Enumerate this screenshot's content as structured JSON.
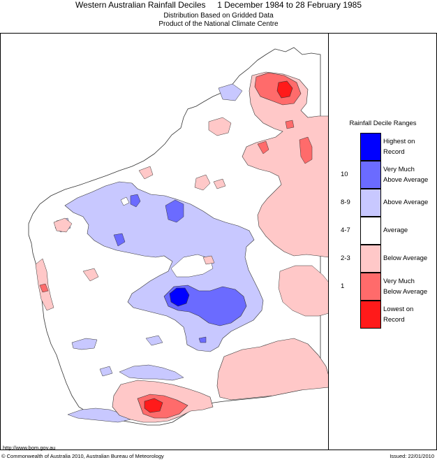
{
  "header": {
    "title": "Western Australian Rainfall Deciles     1 December 1984 to 28 February 1985",
    "subtitle1": "Distribution Based on Gridded Data",
    "subtitle2": "Product of the National Climate Centre"
  },
  "legend": {
    "title": "Rainfall Decile Ranges",
    "items": [
      {
        "label": "Highest on\nRecord",
        "decile": "",
        "color": "#0000ff"
      },
      {
        "label": "Very Much\nAbove Average",
        "decile": "10",
        "color": "#6b6bff"
      },
      {
        "label": "Above Average",
        "decile": "8-9",
        "color": "#c8c8ff"
      },
      {
        "label": "Average",
        "decile": "4-7",
        "color": "#ffffff"
      },
      {
        "label": "Below Average",
        "decile": "2-3",
        "color": "#ffc8c8"
      },
      {
        "label": "Very Much\nBelow Average",
        "decile": "1",
        "color": "#ff6b6b"
      },
      {
        "label": "Lowest on\nRecord",
        "decile": "",
        "color": "#ff1a1a"
      }
    ]
  },
  "footer": {
    "url": "http://www.bom.gov.au",
    "copyright": "© Commonwealth of Australia 2010, Australian Bureau of Meteorology",
    "issued": "Issued: 22/01/2010"
  },
  "colors": {
    "outline": "#333333",
    "highest": "#0000ff",
    "very_much_above": "#6b6bff",
    "above": "#c8c8ff",
    "below": "#ffc8c8",
    "very_much_below": "#ff6b6b",
    "lowest": "#ff1a1a"
  }
}
